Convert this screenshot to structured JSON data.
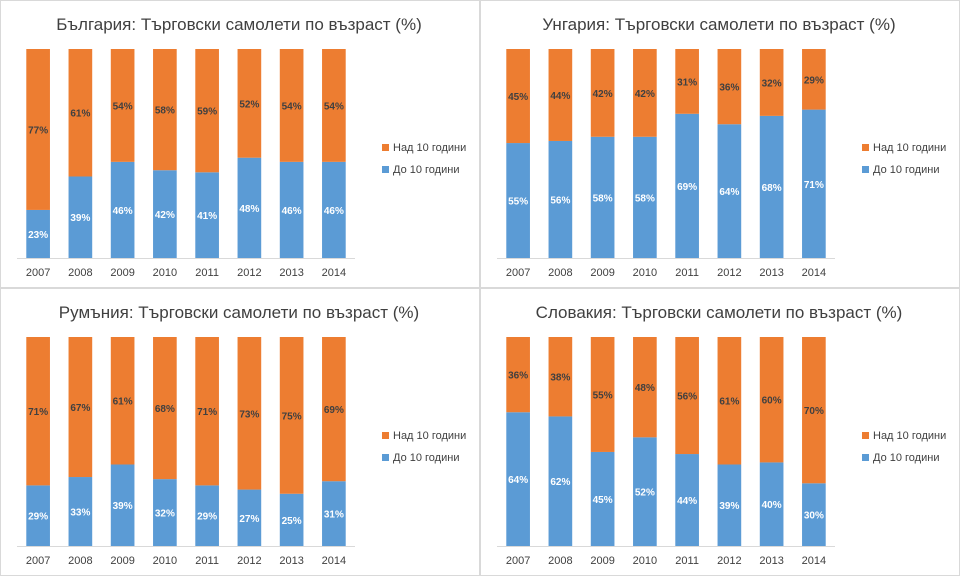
{
  "colors": {
    "over": "#ED7D31",
    "under": "#5B9BD5",
    "over_label": "#404040",
    "under_label": "#FFFFFF"
  },
  "chart_data": [
    {
      "type": "bar",
      "stacked": true,
      "title": "България: Търговски самолети по възраст (%)",
      "categories": [
        "2007",
        "2008",
        "2009",
        "2010",
        "2011",
        "2012",
        "2013",
        "2014"
      ],
      "series": [
        {
          "name": "До 10 години",
          "values": [
            23,
            39,
            46,
            42,
            41,
            48,
            46,
            46
          ]
        },
        {
          "name": "Над 10 години",
          "values": [
            77,
            61,
            54,
            58,
            59,
            52,
            54,
            54
          ]
        }
      ],
      "ylim": [
        0,
        100
      ],
      "legend": "right"
    },
    {
      "type": "bar",
      "stacked": true,
      "title": "Унгария: Търговски самолети по възраст (%)",
      "categories": [
        "2007",
        "2008",
        "2009",
        "2010",
        "2011",
        "2012",
        "2013",
        "2014"
      ],
      "series": [
        {
          "name": "До 10 години",
          "values": [
            55,
            56,
            58,
            58,
            69,
            64,
            68,
            71
          ]
        },
        {
          "name": "Над 10 години",
          "values": [
            45,
            44,
            42,
            42,
            31,
            36,
            32,
            29
          ]
        }
      ],
      "ylim": [
        0,
        100
      ],
      "legend": "right"
    },
    {
      "type": "bar",
      "stacked": true,
      "title": "Румъния: Търговски самолети по възраст (%)",
      "categories": [
        "2007",
        "2008",
        "2009",
        "2010",
        "2011",
        "2012",
        "2013",
        "2014"
      ],
      "series": [
        {
          "name": "До 10 години",
          "values": [
            29,
            33,
            39,
            32,
            29,
            27,
            25,
            31
          ]
        },
        {
          "name": "Над 10 години",
          "values": [
            71,
            67,
            61,
            68,
            71,
            73,
            75,
            69
          ]
        }
      ],
      "ylim": [
        0,
        100
      ],
      "legend": "right"
    },
    {
      "type": "bar",
      "stacked": true,
      "title": "Словакия: Търговски самолети по възраст (%)",
      "categories": [
        "2007",
        "2008",
        "2009",
        "2010",
        "2011",
        "2012",
        "2013",
        "2014"
      ],
      "series": [
        {
          "name": "До 10 години",
          "values": [
            64,
            62,
            45,
            52,
            44,
            39,
            40,
            30
          ]
        },
        {
          "name": "Над 10 години",
          "values": [
            36,
            38,
            55,
            48,
            56,
            61,
            60,
            70
          ]
        }
      ],
      "ylim": [
        0,
        100
      ],
      "legend": "right"
    }
  ]
}
